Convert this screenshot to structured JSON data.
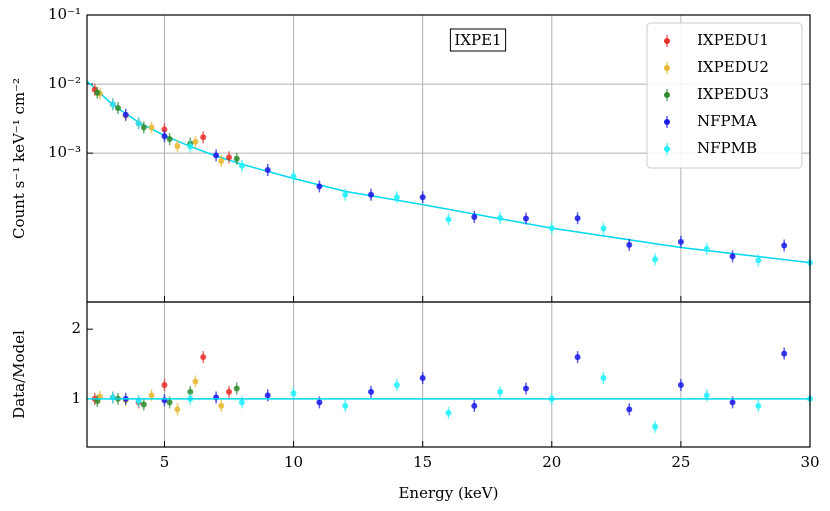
{
  "chart_data": [
    {
      "type": "scatter",
      "ylog": true,
      "grid": "both",
      "legend": "upper right",
      "ylabel": "Count s⁻¹ keV⁻¹ cm⁻²",
      "annotation": "IXPE1",
      "xlim": [
        2,
        30
      ],
      "xticks": [
        5,
        10,
        15,
        20,
        25,
        30
      ],
      "ylim": [
        7e-06,
        0.1
      ],
      "yticks": [
        {
          "value": 0.1,
          "label": "10⁻¹"
        },
        {
          "value": 0.01,
          "label": "10⁻²"
        },
        {
          "value": 0.001,
          "label": "10⁻³"
        }
      ],
      "model": {
        "color": "#00d8f0",
        "x": [
          2,
          3,
          4,
          5,
          6,
          7,
          8,
          10,
          12,
          15,
          20,
          25,
          30
        ],
        "values": [
          0.011,
          0.005,
          0.0028,
          0.0018,
          0.00125,
          0.00091,
          0.00069,
          0.00043,
          0.00028,
          0.00018,
          8.2e-05,
          4.3e-05,
          2.6e-05
        ]
      },
      "series": [
        {
          "name": "IXPEDU1",
          "color": "#e8302a",
          "x": [
            2.3,
            3.0,
            4.0,
            5.0,
            6.5,
            7.5
          ],
          "values": [
            0.0083,
            0.0051,
            0.0027,
            0.0022,
            0.0017,
            0.00087
          ]
        },
        {
          "name": "IXPEDU2",
          "color": "#e8b830",
          "x": [
            2.5,
            3.5,
            4.5,
            5.5,
            6.2,
            7.2
          ],
          "values": [
            0.0073,
            0.0035,
            0.00235,
            0.00127,
            0.00146,
            0.00077
          ]
        },
        {
          "name": "IXPEDU3",
          "color": "#2e8b2e",
          "x": [
            2.4,
            3.2,
            4.2,
            5.2,
            6.0,
            7.8
          ],
          "values": [
            0.0075,
            0.0045,
            0.00236,
            0.0016,
            0.00138,
            0.00083
          ]
        },
        {
          "name": "NFPMA",
          "color": "#1a1ae6",
          "x": [
            3.5,
            5,
            7,
            9,
            11,
            13,
            15,
            17,
            19,
            21,
            23,
            25,
            27,
            29
          ],
          "values": [
            0.0036,
            0.00176,
            0.00093,
            0.00057,
            0.00033,
            0.00025,
            0.00023,
            0.000119,
            0.000113,
            0.000114,
            4.7e-05,
            5.2e-05,
            3.2e-05,
            4.6e-05
          ]
        },
        {
          "name": "NFPMB",
          "color": "#20f0ff",
          "x": [
            3,
            4,
            6,
            8,
            10,
            12,
            14,
            16,
            18,
            20,
            22,
            24,
            26,
            28,
            30
          ],
          "values": [
            0.0051,
            0.0027,
            0.00125,
            0.00066,
            0.00046,
            0.00025,
            0.00023,
            0.00011,
            0.000115,
            8.2e-05,
            8.1e-05,
            2.9e-05,
            4.1e-05,
            2.8e-05,
            2.6e-05
          ]
        }
      ]
    },
    {
      "type": "scatter",
      "grid": "x",
      "xlabel": "Energy (keV)",
      "ylabel": "Data/Model",
      "xlim": [
        2,
        30
      ],
      "xticks": [
        5,
        10,
        15,
        20,
        25,
        30
      ],
      "ylim": [
        0.31,
        2.39
      ],
      "yticks": [
        1,
        2
      ],
      "hline": 1,
      "hline_color": "#00d8f0",
      "series": [
        {
          "color": "#e8302a",
          "x": [
            2.3,
            3.0,
            4.0,
            5.0,
            6.5,
            7.5
          ],
          "values": [
            1.0,
            1.02,
            0.95,
            1.2,
            1.6,
            1.1
          ]
        },
        {
          "color": "#e8b830",
          "x": [
            2.5,
            3.5,
            4.5,
            5.5,
            6.2,
            7.2
          ],
          "values": [
            1.03,
            0.98,
            1.05,
            0.85,
            1.25,
            0.9
          ]
        },
        {
          "color": "#2e8b2e",
          "x": [
            2.4,
            3.2,
            4.2,
            5.2,
            6.0,
            7.8
          ],
          "values": [
            0.97,
            1.0,
            0.92,
            0.95,
            1.1,
            1.15
          ]
        },
        {
          "color": "#1a1ae6",
          "x": [
            3.5,
            5,
            7,
            9,
            11,
            13,
            15,
            17,
            19,
            21,
            23,
            25,
            27,
            29
          ],
          "values": [
            1.0,
            0.98,
            1.02,
            1.05,
            0.95,
            1.1,
            1.3,
            0.9,
            1.15,
            1.6,
            0.85,
            1.2,
            0.95,
            1.65
          ]
        },
        {
          "color": "#20f0ff",
          "x": [
            3,
            4,
            6,
            8,
            10,
            12,
            14,
            16,
            18,
            20,
            22,
            24,
            26,
            28,
            30
          ],
          "values": [
            1.02,
            0.97,
            1.0,
            0.95,
            1.08,
            0.9,
            1.2,
            0.8,
            1.1,
            1.0,
            1.3,
            0.6,
            1.05,
            0.9,
            1.0
          ]
        }
      ]
    }
  ]
}
